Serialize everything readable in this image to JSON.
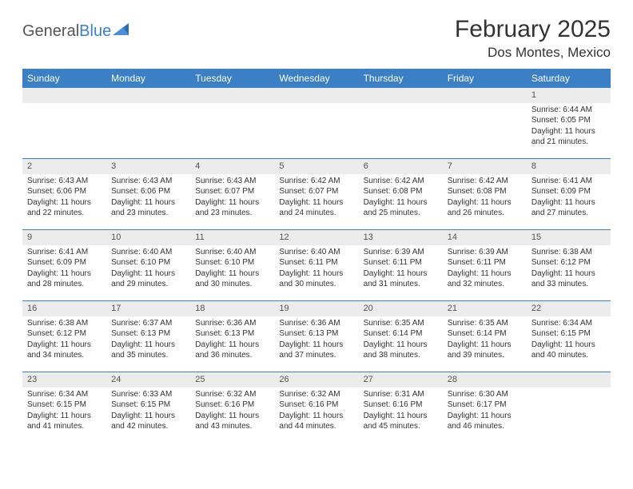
{
  "brand": {
    "name_part1": "General",
    "name_part2": "Blue"
  },
  "title": "February 2025",
  "location": "Dos Montes, Mexico",
  "colors": {
    "header_bg": "#3b7fc4",
    "header_text": "#ffffff",
    "daynum_bg": "#ececec",
    "border": "#3b7fc4",
    "page_bg": "#ffffff",
    "text": "#333333"
  },
  "weekdays": [
    "Sunday",
    "Monday",
    "Tuesday",
    "Wednesday",
    "Thursday",
    "Friday",
    "Saturday"
  ],
  "weeks": [
    [
      null,
      null,
      null,
      null,
      null,
      null,
      {
        "d": "1",
        "sr": "6:44 AM",
        "ss": "6:05 PM",
        "dl": "11 hours and 21 minutes."
      }
    ],
    [
      {
        "d": "2",
        "sr": "6:43 AM",
        "ss": "6:06 PM",
        "dl": "11 hours and 22 minutes."
      },
      {
        "d": "3",
        "sr": "6:43 AM",
        "ss": "6:06 PM",
        "dl": "11 hours and 23 minutes."
      },
      {
        "d": "4",
        "sr": "6:43 AM",
        "ss": "6:07 PM",
        "dl": "11 hours and 23 minutes."
      },
      {
        "d": "5",
        "sr": "6:42 AM",
        "ss": "6:07 PM",
        "dl": "11 hours and 24 minutes."
      },
      {
        "d": "6",
        "sr": "6:42 AM",
        "ss": "6:08 PM",
        "dl": "11 hours and 25 minutes."
      },
      {
        "d": "7",
        "sr": "6:42 AM",
        "ss": "6:08 PM",
        "dl": "11 hours and 26 minutes."
      },
      {
        "d": "8",
        "sr": "6:41 AM",
        "ss": "6:09 PM",
        "dl": "11 hours and 27 minutes."
      }
    ],
    [
      {
        "d": "9",
        "sr": "6:41 AM",
        "ss": "6:09 PM",
        "dl": "11 hours and 28 minutes."
      },
      {
        "d": "10",
        "sr": "6:40 AM",
        "ss": "6:10 PM",
        "dl": "11 hours and 29 minutes."
      },
      {
        "d": "11",
        "sr": "6:40 AM",
        "ss": "6:10 PM",
        "dl": "11 hours and 30 minutes."
      },
      {
        "d": "12",
        "sr": "6:40 AM",
        "ss": "6:11 PM",
        "dl": "11 hours and 30 minutes."
      },
      {
        "d": "13",
        "sr": "6:39 AM",
        "ss": "6:11 PM",
        "dl": "11 hours and 31 minutes."
      },
      {
        "d": "14",
        "sr": "6:39 AM",
        "ss": "6:11 PM",
        "dl": "11 hours and 32 minutes."
      },
      {
        "d": "15",
        "sr": "6:38 AM",
        "ss": "6:12 PM",
        "dl": "11 hours and 33 minutes."
      }
    ],
    [
      {
        "d": "16",
        "sr": "6:38 AM",
        "ss": "6:12 PM",
        "dl": "11 hours and 34 minutes."
      },
      {
        "d": "17",
        "sr": "6:37 AM",
        "ss": "6:13 PM",
        "dl": "11 hours and 35 minutes."
      },
      {
        "d": "18",
        "sr": "6:36 AM",
        "ss": "6:13 PM",
        "dl": "11 hours and 36 minutes."
      },
      {
        "d": "19",
        "sr": "6:36 AM",
        "ss": "6:13 PM",
        "dl": "11 hours and 37 minutes."
      },
      {
        "d": "20",
        "sr": "6:35 AM",
        "ss": "6:14 PM",
        "dl": "11 hours and 38 minutes."
      },
      {
        "d": "21",
        "sr": "6:35 AM",
        "ss": "6:14 PM",
        "dl": "11 hours and 39 minutes."
      },
      {
        "d": "22",
        "sr": "6:34 AM",
        "ss": "6:15 PM",
        "dl": "11 hours and 40 minutes."
      }
    ],
    [
      {
        "d": "23",
        "sr": "6:34 AM",
        "ss": "6:15 PM",
        "dl": "11 hours and 41 minutes."
      },
      {
        "d": "24",
        "sr": "6:33 AM",
        "ss": "6:15 PM",
        "dl": "11 hours and 42 minutes."
      },
      {
        "d": "25",
        "sr": "6:32 AM",
        "ss": "6:16 PM",
        "dl": "11 hours and 43 minutes."
      },
      {
        "d": "26",
        "sr": "6:32 AM",
        "ss": "6:16 PM",
        "dl": "11 hours and 44 minutes."
      },
      {
        "d": "27",
        "sr": "6:31 AM",
        "ss": "6:16 PM",
        "dl": "11 hours and 45 minutes."
      },
      {
        "d": "28",
        "sr": "6:30 AM",
        "ss": "6:17 PM",
        "dl": "11 hours and 46 minutes."
      },
      null
    ]
  ],
  "labels": {
    "sunrise": "Sunrise:",
    "sunset": "Sunset:",
    "daylight": "Daylight:"
  }
}
